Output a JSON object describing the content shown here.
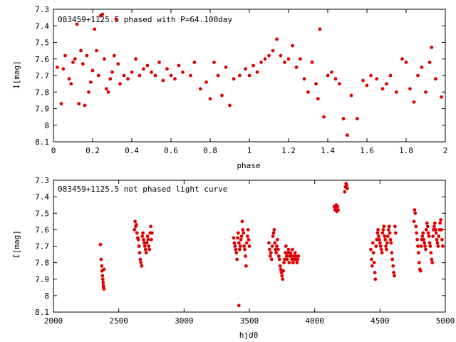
{
  "colors": {
    "points": "#e00000",
    "axes": "#000000",
    "background": "#ffffff"
  },
  "chart_data": [
    {
      "type": "scatter",
      "title": "083459+1125.5 phased with P=64.100day",
      "xlabel": "phase",
      "ylabel": "I[mag]",
      "xlim": [
        0,
        2
      ],
      "ylim": [
        7.3,
        8.1
      ],
      "y_inverted": true,
      "xticks": [
        "0",
        "0.2",
        "0.4",
        "0.6",
        "0.8",
        "1",
        "1.2",
        "1.4",
        "1.6",
        "1.8",
        "2"
      ],
      "yticks": [
        "7.3",
        "7.4",
        "7.5",
        "7.6",
        "7.7",
        "7.8",
        "7.9",
        "8",
        "8.1"
      ],
      "grid": false,
      "series": [
        {
          "x": [
            0.02,
            0.04,
            0.05,
            0.06,
            0.08,
            0.09,
            0.1,
            0.11,
            0.12,
            0.13,
            0.14,
            0.15,
            0.16,
            0.17,
            0.18,
            0.19,
            0.2,
            0.21,
            0.22,
            0.23,
            0.24,
            0.25,
            0.26,
            0.27,
            0.28,
            0.29,
            0.3,
            0.31,
            0.32,
            0.33,
            0.34,
            0.36,
            0.38,
            0.4,
            0.42,
            0.44,
            0.46,
            0.48,
            0.5,
            0.52,
            0.54,
            0.56,
            0.58,
            0.6,
            0.62,
            0.64,
            0.66,
            0.7,
            0.72,
            0.75,
            0.78,
            0.8,
            0.82,
            0.84,
            0.86,
            0.88,
            0.9,
            0.92,
            0.95,
            0.98,
            1.0,
            1.02,
            1.04,
            1.06,
            1.08,
            1.1,
            1.12,
            1.14,
            1.16,
            1.18,
            1.2,
            1.22,
            1.24,
            1.26,
            1.28,
            1.3,
            1.32,
            1.34,
            1.35,
            1.36,
            1.38,
            1.4,
            1.42,
            1.44,
            1.46,
            1.48,
            1.5,
            1.52,
            1.55,
            1.58,
            1.6,
            1.62,
            1.65,
            1.68,
            1.7,
            1.72,
            1.75,
            1.78,
            1.8,
            1.82,
            1.84,
            1.86,
            1.88,
            1.9,
            1.92,
            1.93,
            1.95,
            1.98
          ],
          "y": [
            7.65,
            7.87,
            7.66,
            7.58,
            7.72,
            7.75,
            7.62,
            7.6,
            7.39,
            7.87,
            7.55,
            7.63,
            7.88,
            7.58,
            7.8,
            7.74,
            7.67,
            7.42,
            7.55,
            7.7,
            7.34,
            7.33,
            7.6,
            7.78,
            7.8,
            7.72,
            7.68,
            7.58,
            7.36,
            7.63,
            7.75,
            7.7,
            7.72,
            7.68,
            7.6,
            7.7,
            7.66,
            7.64,
            7.68,
            7.7,
            7.62,
            7.73,
            7.66,
            7.7,
            7.72,
            7.64,
            7.68,
            7.7,
            7.62,
            7.78,
            7.74,
            7.84,
            7.62,
            7.7,
            7.82,
            7.65,
            7.88,
            7.72,
            7.7,
            7.66,
            7.7,
            7.64,
            7.68,
            7.62,
            7.6,
            7.58,
            7.55,
            7.48,
            7.58,
            7.62,
            7.6,
            7.52,
            7.65,
            7.6,
            7.72,
            7.8,
            7.62,
            7.75,
            7.84,
            7.42,
            7.95,
            7.7,
            7.68,
            7.72,
            7.75,
            7.96,
            8.06,
            7.82,
            7.96,
            7.73,
            7.76,
            7.7,
            7.72,
            7.78,
            7.75,
            7.7,
            7.8,
            7.6,
            7.62,
            7.78,
            7.86,
            7.7,
            7.65,
            7.8,
            7.62,
            7.53,
            7.72,
            7.83
          ]
        }
      ]
    },
    {
      "type": "scatter",
      "title": "083459+1125.5 not phased light curve",
      "xlabel": "hjd0",
      "ylabel": "I[mag]",
      "xlim": [
        2000,
        5000
      ],
      "ylim": [
        7.3,
        8.1
      ],
      "y_inverted": true,
      "xticks": [
        "2000",
        "2500",
        "3000",
        "3500",
        "4000",
        "4500",
        "5000"
      ],
      "yticks": [
        "7.3",
        "7.4",
        "7.5",
        "7.6",
        "7.7",
        "7.8",
        "7.9",
        "8",
        "8.1"
      ],
      "grid": false,
      "series": [
        {
          "x": [
            2360,
            2365,
            2370,
            2372,
            2375,
            2378,
            2380,
            2382,
            2384,
            2386,
            2388,
            2620,
            2625,
            2630,
            2635,
            2640,
            2645,
            2650,
            2655,
            2660,
            2665,
            2670,
            2675,
            2680,
            2685,
            2690,
            2695,
            2700,
            2705,
            2710,
            2715,
            2720,
            2725,
            2730,
            2735,
            2740,
            2745,
            2750,
            2755,
            3380,
            3385,
            3390,
            3395,
            3400,
            3405,
            3410,
            3415,
            3420,
            3425,
            3430,
            3435,
            3440,
            3445,
            3450,
            3455,
            3460,
            3465,
            3470,
            3475,
            3480,
            3485,
            3490,
            3495,
            3500,
            3650,
            3655,
            3660,
            3665,
            3670,
            3675,
            3680,
            3685,
            3690,
            3695,
            3700,
            3705,
            3710,
            3715,
            3720,
            3725,
            3730,
            3735,
            3740,
            3745,
            3750,
            3755,
            3760,
            3765,
            3770,
            3775,
            3780,
            3785,
            3790,
            3795,
            3800,
            3805,
            3810,
            3815,
            3820,
            3825,
            3830,
            3835,
            3840,
            3845,
            3850,
            3855,
            3860,
            3865,
            3870,
            3875,
            4150,
            4155,
            4160,
            4165,
            4170,
            4175,
            4180,
            4230,
            4235,
            4240,
            4245,
            4250,
            4430,
            4435,
            4440,
            4445,
            4450,
            4455,
            4460,
            4465,
            4470,
            4475,
            4480,
            4485,
            4490,
            4495,
            4500,
            4505,
            4510,
            4515,
            4520,
            4525,
            4530,
            4535,
            4540,
            4545,
            4550,
            4555,
            4560,
            4565,
            4570,
            4575,
            4580,
            4585,
            4590,
            4595,
            4600,
            4605,
            4610,
            4615,
            4620,
            3420,
            4760,
            4765,
            4770,
            4775,
            4780,
            4785,
            4790,
            4795,
            4800,
            4805,
            4810,
            4815,
            4820,
            4825,
            4830,
            4835,
            4840,
            4845,
            4850,
            4855,
            4860,
            4865,
            4870,
            4875,
            4880,
            4885,
            4890,
            4895,
            4900,
            4905,
            4910,
            4915,
            4920,
            4925,
            4930,
            4935,
            4940,
            4945,
            4950,
            4955,
            4960,
            4965,
            4970,
            4975,
            4980
          ],
          "y": [
            7.69,
            7.78,
            7.82,
            7.85,
            7.88,
            7.9,
            7.92,
            7.94,
            7.95,
            7.96,
            7.84,
            7.6,
            7.55,
            7.58,
            7.57,
            7.62,
            7.65,
            7.66,
            7.7,
            7.74,
            7.78,
            7.8,
            7.82,
            7.64,
            7.62,
            7.66,
            7.68,
            7.7,
            7.72,
            7.74,
            7.68,
            7.64,
            7.66,
            7.7,
            7.72,
            7.62,
            7.58,
            7.66,
            7.62,
            7.65,
            7.68,
            7.7,
            7.72,
            7.74,
            7.78,
            7.65,
            7.62,
            7.68,
            7.72,
            7.7,
            7.66,
            7.64,
            7.55,
            7.6,
            7.62,
            7.7,
            7.72,
            7.76,
            7.82,
            7.68,
            7.64,
            7.6,
            7.66,
            7.7,
            7.68,
            7.72,
            7.76,
            7.74,
            7.78,
            7.7,
            7.64,
            7.62,
            7.6,
            7.68,
            7.72,
            7.74,
            7.7,
            7.66,
            7.72,
            7.76,
            7.78,
            7.82,
            7.84,
            7.86,
            7.88,
            7.9,
            7.85,
            7.8,
            7.78,
            7.74,
            7.7,
            7.76,
            7.78,
            7.74,
            7.72,
            7.8,
            7.76,
            7.74,
            7.76,
            7.78,
            7.72,
            7.8,
            7.76,
            7.78,
            7.74,
            7.76,
            7.78,
            7.8,
            7.78,
            7.76,
            7.46,
            7.48,
            7.47,
            7.45,
            7.49,
            7.46,
            7.48,
            7.37,
            7.34,
            7.32,
            7.33,
            7.35,
            7.72,
            7.78,
            7.82,
            7.68,
            7.74,
            7.8,
            7.86,
            7.9,
            7.7,
            7.66,
            7.62,
            7.6,
            7.64,
            7.66,
            7.68,
            7.7,
            7.72,
            7.74,
            7.62,
            7.6,
            7.58,
            7.64,
            7.66,
            7.7,
            7.72,
            7.68,
            7.64,
            7.6,
            7.58,
            7.62,
            7.66,
            7.68,
            7.74,
            7.78,
            7.82,
            7.86,
            7.88,
            7.58,
            7.62,
            8.06,
            7.55,
            7.48,
            7.5,
            7.58,
            7.62,
            7.66,
            7.7,
            7.74,
            7.8,
            7.84,
            7.85,
            7.7,
            7.66,
            7.64,
            7.62,
            7.66,
            7.68,
            7.7,
            7.72,
            7.6,
            7.56,
            7.58,
            7.62,
            7.64,
            7.68,
            7.7,
            7.74,
            7.78,
            7.8,
            7.64,
            7.6,
            7.58,
            7.56,
            7.6,
            7.62,
            7.66,
            7.68,
            7.7,
            7.64,
            7.6,
            7.56,
            7.54,
            7.6,
            7.66,
            7.7
          ]
        }
      ]
    }
  ]
}
